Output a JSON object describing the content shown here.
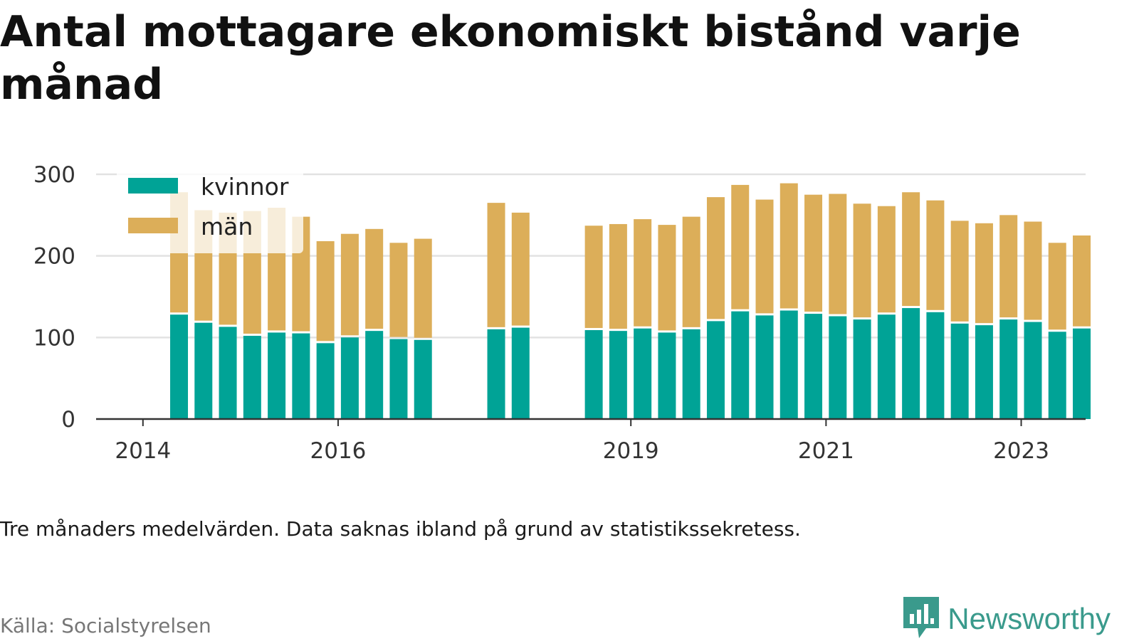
{
  "title": "Antal mottagare ekonomiskt bistånd varje månad",
  "caption": "Tre månaders medelvärden. Data saknas ibland på grund av statistikssekretess.",
  "source": "Källa: Socialstyrelsen",
  "brand": "Newsworthy",
  "brand_icon": "bar-chart-speech-bubble-icon",
  "colors": {
    "kvinnor": "#00a396",
    "man": "#dcae59",
    "grid": "#e2e2e2",
    "axis": "#333333",
    "brand": "#3a9a8c"
  },
  "chart_data": {
    "type": "bar",
    "stacked": true,
    "legend": [
      "kvinnor",
      "män"
    ],
    "legend_position": "top-left",
    "grid": true,
    "ylim": [
      0,
      300
    ],
    "yticks": [
      0,
      100,
      200,
      300
    ],
    "xticks": [
      {
        "label": "2014",
        "x": 2014.0
      },
      {
        "label": "2016",
        "x": 2016.0
      },
      {
        "label": "2019",
        "x": 2019.0
      },
      {
        "label": "2021",
        "x": 2021.0
      },
      {
        "label": "2023",
        "x": 2023.0
      }
    ],
    "xlim": [
      2013.52,
      2023.66
    ],
    "series": [
      {
        "name": "kvinnor",
        "values": [
          128,
          118,
          113,
          102,
          106,
          105,
          93,
          100,
          108,
          98,
          97,
          110,
          112,
          109,
          108,
          111,
          106,
          110,
          120,
          132,
          127,
          133,
          129,
          126,
          122,
          128,
          136,
          131,
          117,
          115,
          122,
          119,
          107,
          111
        ]
      },
      {
        "name": "män",
        "values": [
          150,
          138,
          140,
          153,
          153,
          143,
          125,
          127,
          125,
          118,
          124,
          155,
          141,
          128,
          131,
          134,
          132,
          138,
          152,
          155,
          142,
          156,
          146,
          150,
          142,
          133,
          142,
          137,
          126,
          125,
          128,
          123,
          109,
          114
        ]
      }
    ],
    "x": [
      2014.37,
      2014.62,
      2014.87,
      2015.12,
      2015.37,
      2015.62,
      2015.87,
      2016.12,
      2016.37,
      2016.62,
      2016.87,
      2017.62,
      2017.87,
      2018.62,
      2018.87,
      2019.12,
      2019.37,
      2019.62,
      2019.87,
      2020.12,
      2020.37,
      2020.62,
      2020.87,
      2021.12,
      2021.37,
      2021.62,
      2021.87,
      2022.12,
      2022.37,
      2022.62,
      2022.87,
      2023.12,
      2023.37,
      2023.62
    ]
  }
}
